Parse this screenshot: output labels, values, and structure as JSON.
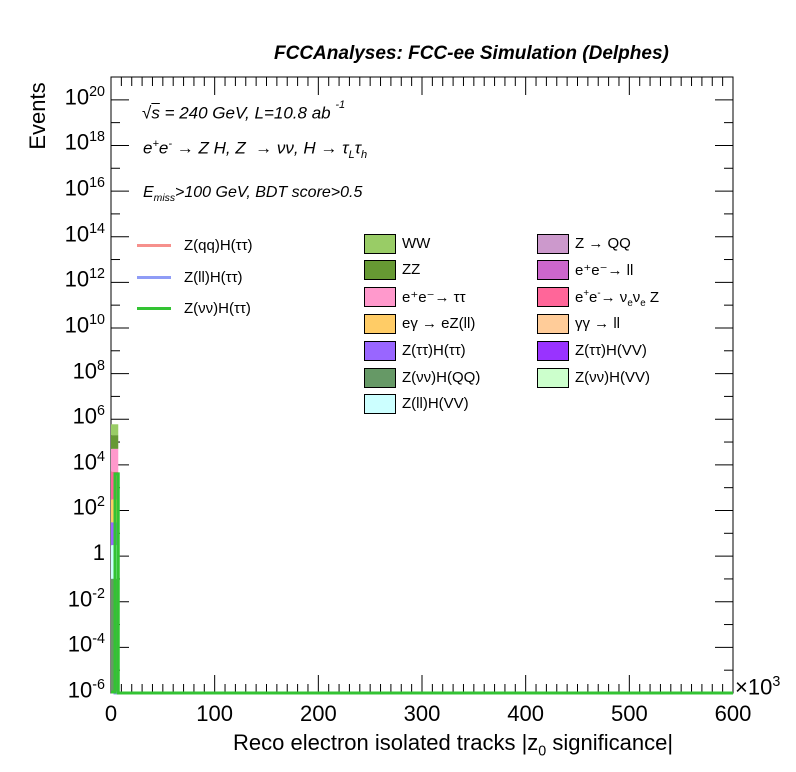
{
  "title": "FCCAnalyses: FCC-ee Simulation (Delphes)",
  "annotations": {
    "energy": "√s = 240 GeV, L=10.8 ab⁻¹",
    "process": "e⁺e⁻ → Z H, Z → νν, H → τ_L τ_h",
    "cuts": "E_miss>100 GeV, BDT score>0.5"
  },
  "colors": {
    "ZqqHtautau": "#f6908c",
    "ZllHtautau": "#8f9cf6",
    "ZnunuHtautau": "#33c333",
    "WW": "#99cc66",
    "ZZ": "#669933",
    "ee_tautau": "#ff99cc",
    "egamma_eZll": "#ffcc66",
    "ZtautauHtautau": "#9966ff",
    "ZnunuHQQ": "#669966",
    "ZllHVV": "#ccffff",
    "Z_QQ": "#cc99cc",
    "ee_ll": "#cc66cc",
    "ee_nunuZ": "#ff6699",
    "gammagamma_ll": "#ffcc99",
    "ZtautauHVV": "#9933ff",
    "ZnunuHVV": "#ccffcc"
  },
  "chart_data": {
    "type": "bar",
    "title": "FCCAnalyses: FCC-ee Simulation (Delphes)",
    "xlabel": "Reco electron isolated tracks |z0 significance|",
    "ylabel": "Events",
    "x_multiplier": "×10^3",
    "xlim": [
      0,
      600
    ],
    "ylim": [
      1e-06,
      1e+21
    ],
    "yscale": "log",
    "grid": false,
    "x_ticks": [
      "0",
      "100",
      "200",
      "300",
      "400",
      "500",
      "600"
    ],
    "y_ticks": [
      {
        "value": 1e-06,
        "base": "10",
        "exp": "-6"
      },
      {
        "value": 0.0001,
        "base": "10",
        "exp": "-4"
      },
      {
        "value": 0.01,
        "base": "10",
        "exp": "-2"
      },
      {
        "value": 1,
        "base": "1",
        "exp": ""
      },
      {
        "value": 100.0,
        "base": "10",
        "exp": "2"
      },
      {
        "value": 10000.0,
        "base": "10",
        "exp": "4"
      },
      {
        "value": 1000000.0,
        "base": "10",
        "exp": "6"
      },
      {
        "value": 100000000.0,
        "base": "10",
        "exp": "8"
      },
      {
        "value": 10000000000.0,
        "base": "10",
        "exp": "10"
      },
      {
        "value": 1000000000000.0,
        "base": "10",
        "exp": "12"
      },
      {
        "value": 100000000000000.0,
        "base": "10",
        "exp": "14"
      },
      {
        "value": 1e+16,
        "base": "10",
        "exp": "16"
      },
      {
        "value": 1e+18,
        "base": "10",
        "exp": "18"
      },
      {
        "value": 1e+20,
        "base": "10",
        "exp": "20"
      }
    ],
    "stack_first_bin": {
      "x_range": [
        0,
        7
      ],
      "segments": [
        {
          "name": "WW",
          "color": "#99cc66",
          "y_low": 200000.0,
          "y_high": 600000.0
        },
        {
          "name": "ZZ",
          "color": "#669933",
          "y_low": 50000.0,
          "y_high": 200000.0
        },
        {
          "name": "e+e- → ττ",
          "color": "#ff99cc",
          "y_low": 5000.0,
          "y_high": 50000.0
        },
        {
          "name": "e+e- → νeνe Z",
          "color": "#ff6699",
          "y_low": 300.0,
          "y_high": 5000.0
        },
        {
          "name": "eγ → eZ(ll)",
          "color": "#ffcc66",
          "y_low": 30.0,
          "y_high": 300.0
        },
        {
          "name": "Z(ττ)H(ττ)",
          "color": "#9966ff",
          "y_low": 3,
          "y_high": 30.0
        },
        {
          "name": "Z(ll)H(VV)",
          "color": "#ccffff",
          "y_low": 0.1,
          "y_high": 3
        },
        {
          "name": "Z(νν)H(QQ)",
          "color": "#669966",
          "y_low": 1e-06,
          "y_high": 0.1
        }
      ]
    },
    "signal_lines": [
      {
        "name": "Z(qq)H(ττ)",
        "color": "#f6908c",
        "first_bin": 1e-06,
        "rest": 1e-06
      },
      {
        "name": "Z(ll)H(ττ)",
        "color": "#8f9cf6",
        "first_bin": 1e-06,
        "rest": 1e-06
      },
      {
        "name": "Z(νν)H(ττ)",
        "color": "#33c333",
        "first_bin": 4000.0,
        "rest": 1e-06
      }
    ]
  },
  "legend_lines": [
    "Z(qq)H(ττ)",
    "Z(ll)H(ττ)",
    "Z(νν)H(ττ)"
  ],
  "legend_col1": [
    "WW",
    "ZZ",
    "e⁺e⁻→ ττ",
    "eγ → eZ(ll)",
    "Z(ττ)H(ττ)",
    "Z(νν)H(QQ)",
    "Z(ll)H(VV)"
  ],
  "legend_col2": [
    "Z → QQ",
    "e⁺e⁻→ ll",
    "e⁺e⁻→ νeνe Z",
    "γγ → ll",
    "Z(ττ)H(VV)",
    "Z(νν)H(VV)"
  ]
}
